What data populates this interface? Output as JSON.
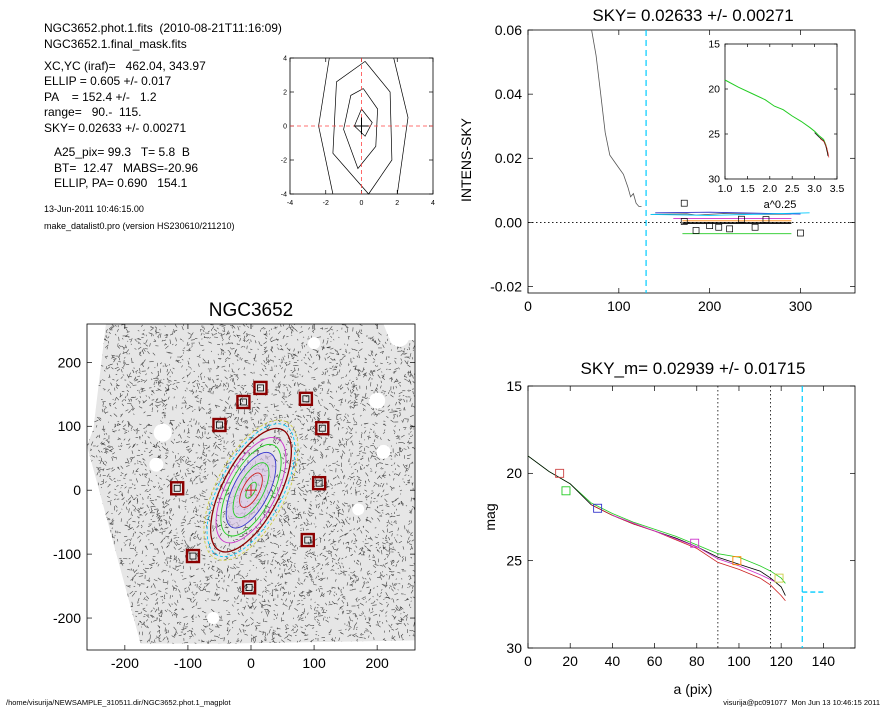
{
  "info": {
    "lines": [
      "NGC3652.phot.1.fits  (2010-08-21T11:16:09)",
      "NGC3652.1.final_mask.fits",
      "XC,YC (iraf)=   462.04, 343.97",
      "ELLIP = 0.605 +/- 0.017",
      "PA    = 152.4 +/-   1.2",
      "range=   90.-  115.",
      "SKY= 0.02633 +/- 0.00271",
      "A25_pix= 99.3   T= 5.8  B",
      "BT=  12.47   MABS=-20.96",
      "ELLIP, PA= 0.690   154.1",
      "13-Jun-2011 10:46:15.00",
      "make_datalist0.pro (version HS230610/211210)"
    ]
  },
  "footer": {
    "left": "/home/visurija/NEWSAMPLE_310511.dir/NGC3652.phot.1_magplot",
    "right": "visurija@pc091077  Mon Jun 13 10:46:15 2011"
  },
  "colors": {
    "sky": "#00ccff",
    "cross": "#ff4444",
    "box": "#8b0000",
    "green": "#22cc22",
    "magenta": "#cc33cc",
    "red": "#cc2222",
    "orange": "#ff8800",
    "blue": "#3333cc"
  },
  "chart_data": [
    {
      "type": "line",
      "name": "contour",
      "xlim": [
        -4,
        4
      ],
      "ylim": [
        -4,
        4
      ],
      "xticks": [
        -4,
        -2,
        0,
        2,
        4
      ],
      "yticks": [
        -4,
        -2,
        0,
        2,
        4
      ],
      "contours": [
        [
          [
            0.0,
            1.0
          ],
          [
            0.6,
            0.2
          ],
          [
            0.2,
            -0.6
          ],
          [
            -0.4,
            0.0
          ],
          [
            0.0,
            1.0
          ]
        ],
        [
          [
            0.1,
            2.2
          ],
          [
            0.9,
            1.0
          ],
          [
            0.8,
            -1.2
          ],
          [
            -0.2,
            -2.5
          ],
          [
            -1.0,
            -0.2
          ],
          [
            -0.6,
            1.8
          ],
          [
            0.1,
            2.2
          ]
        ],
        [
          [
            0.2,
            3.8
          ],
          [
            1.6,
            2.0
          ],
          [
            1.7,
            -2.0
          ],
          [
            0.4,
            -4.0
          ],
          [
            -1.6,
            -1.6
          ],
          [
            -1.4,
            2.6
          ],
          [
            0.2,
            3.8
          ]
        ],
        [
          [
            1.8,
            4.0
          ],
          [
            2.6,
            0.5
          ],
          [
            2.0,
            -4.0
          ]
        ],
        [
          [
            -1.8,
            4.0
          ],
          [
            -2.4,
            0.0
          ],
          [
            -1.6,
            -4.0
          ]
        ]
      ],
      "crosshair": [
        0,
        0
      ]
    },
    {
      "type": "line",
      "title": "SKY= 0.02633 +/- 0.00271",
      "xlabel": "",
      "ylabel": "INTENS-SKY",
      "xlim": [
        0,
        360
      ],
      "ylim": [
        -0.022,
        0.06
      ],
      "xticks": [
        0,
        100,
        200,
        300
      ],
      "yticks": [
        -0.02,
        0.0,
        0.02,
        0.04,
        0.06
      ],
      "ytick_labels": [
        "-0.02",
        "0.00",
        "0.02",
        "0.04",
        "0.06"
      ],
      "zero_line": true,
      "sky_vline": 130,
      "profile": [
        [
          70,
          0.06
        ],
        [
          75,
          0.052
        ],
        [
          80,
          0.04
        ],
        [
          85,
          0.028
        ],
        [
          90,
          0.021
        ],
        [
          95,
          0.019
        ],
        [
          100,
          0.017
        ],
        [
          105,
          0.015
        ],
        [
          110,
          0.011
        ],
        [
          113,
          0.008
        ],
        [
          116,
          0.009
        ],
        [
          119,
          0.006
        ],
        [
          122,
          0.005
        ],
        [
          125,
          0.005
        ]
      ],
      "profile_right": [
        [
          135,
          0.0025
        ],
        [
          175,
          0.0027
        ],
        [
          185,
          0.0023
        ],
        [
          215,
          0.0028
        ],
        [
          260,
          0.0025
        ],
        [
          290,
          0.0026
        ]
      ],
      "sky_lines": [
        {
          "color": "#3333cc",
          "points": [
            [
              140,
              0.003
            ],
            [
              200,
              0.0032
            ],
            [
              300,
              0.0026
            ]
          ]
        },
        {
          "color": "#00ccff",
          "points": [
            [
              135,
              0.0025
            ],
            [
              200,
              0.0022
            ],
            [
              310,
              0.003
            ]
          ]
        },
        {
          "color": "#cc33cc",
          "points": [
            [
              160,
              0.0012
            ],
            [
              290,
              0.0012
            ]
          ]
        },
        {
          "color": "#ff8800",
          "points": [
            [
              170,
              0.0005
            ],
            [
              290,
              0.0005
            ]
          ]
        },
        {
          "color": "#000000",
          "points": [
            [
              170,
              -0.0002
            ],
            [
              290,
              -0.0002
            ]
          ]
        },
        {
          "color": "#22cc22",
          "points": [
            [
              170,
              -0.0035
            ],
            [
              290,
              -0.0035
            ]
          ]
        }
      ],
      "squares": [
        [
          172,
          0.006
        ],
        [
          172,
          0.0003
        ],
        [
          185,
          -0.0025
        ],
        [
          200,
          -0.001
        ],
        [
          210,
          -0.0015
        ],
        [
          222,
          -0.002
        ],
        [
          235,
          0.001
        ],
        [
          250,
          -0.0015
        ],
        [
          262,
          0.0009
        ],
        [
          300,
          -0.0033
        ]
      ],
      "inset": {
        "xlabel": "a^0.25",
        "xlim": [
          1.0,
          3.5
        ],
        "ylim": [
          15,
          30
        ],
        "yreverse": true,
        "xticks": [
          1.0,
          1.5,
          2.0,
          2.5,
          3.0,
          3.5
        ],
        "xtick_labels": [
          "1.0",
          "1.5",
          "2.0",
          "2.5",
          "3.0",
          "3.5"
        ],
        "yticks": [
          15,
          20,
          25,
          30
        ],
        "curve": [
          [
            1.0,
            19.0
          ],
          [
            1.3,
            19.8
          ],
          [
            1.6,
            20.5
          ],
          [
            1.9,
            21.2
          ],
          [
            2.1,
            21.9
          ],
          [
            2.3,
            22.3
          ],
          [
            2.5,
            23.0
          ],
          [
            2.7,
            23.6
          ],
          [
            2.9,
            24.3
          ],
          [
            3.0,
            24.7
          ],
          [
            3.1,
            25.2
          ],
          [
            3.2,
            25.6
          ],
          [
            3.25,
            26.2
          ],
          [
            3.28,
            26.8
          ],
          [
            3.3,
            27.3
          ]
        ]
      }
    },
    {
      "type": "scatter",
      "title": "NGC3652",
      "xlim": [
        -260,
        260
      ],
      "ylim": [
        -250,
        260
      ],
      "xticks": [
        -200,
        -100,
        0,
        100,
        200
      ],
      "yticks": [
        -200,
        -100,
        0,
        100,
        200
      ],
      "center": [
        0,
        0
      ],
      "pa_deg": 152.4,
      "ellipses": [
        {
          "a": 122,
          "b": 55,
          "color": "#cccc44"
        },
        {
          "a": 116,
          "b": 50,
          "color": "#00ccff"
        },
        {
          "a": 108,
          "b": 45,
          "color": "#8b0000"
        },
        {
          "a": 92,
          "b": 40,
          "color": "#cc33cc"
        },
        {
          "a": 80,
          "b": 34,
          "color": "#22cc22"
        },
        {
          "a": 66,
          "b": 28,
          "color": "#3333cc"
        },
        {
          "a": 48,
          "b": 20,
          "color": "#22cc22"
        },
        {
          "a": 30,
          "b": 13,
          "color": "#cc2222"
        },
        {
          "a": 14,
          "b": 6,
          "color": "#22cc22"
        }
      ],
      "boxes": [
        [
          15,
          160
        ],
        [
          -12,
          138
        ],
        [
          -50,
          102
        ],
        [
          -117,
          3
        ],
        [
          -92,
          -103
        ],
        [
          -3,
          -152
        ],
        [
          90,
          -78
        ],
        [
          108,
          11
        ],
        [
          113,
          97
        ],
        [
          87,
          143
        ]
      ]
    },
    {
      "type": "line",
      "title": "SKY_m=  0.02939 +/- 0.01715",
      "xlabel": "a (pix)",
      "ylabel": "mag",
      "xlim": [
        0,
        155
      ],
      "ylim": [
        15,
        30
      ],
      "yreverse": true,
      "xticks": [
        0,
        20,
        40,
        60,
        80,
        100,
        120,
        140
      ],
      "yticks": [
        15,
        20,
        25,
        30
      ],
      "vlines": [
        90,
        115
      ],
      "sky_vline": 130,
      "sky_mag": [
        [
          130,
          26.8
        ],
        [
          140,
          26.8
        ]
      ],
      "series": [
        {
          "color": "#22cc22",
          "points": [
            [
              0,
              19.0
            ],
            [
              10,
              19.9
            ],
            [
              20,
              20.6
            ],
            [
              30,
              21.7
            ],
            [
              40,
              22.3
            ],
            [
              50,
              22.8
            ],
            [
              60,
              23.2
            ],
            [
              70,
              23.6
            ],
            [
              80,
              24.1
            ],
            [
              90,
              24.6
            ],
            [
              100,
              24.8
            ],
            [
              110,
              25.3
            ],
            [
              115,
              25.6
            ],
            [
              120,
              26.0
            ],
            [
              122,
              26.3
            ]
          ]
        },
        {
          "color": "#000000",
          "points": [
            [
              0,
              19.0
            ],
            [
              10,
              19.9
            ],
            [
              20,
              20.6
            ],
            [
              30,
              21.8
            ],
            [
              40,
              22.4
            ],
            [
              50,
              22.9
            ],
            [
              60,
              23.3
            ],
            [
              70,
              23.7
            ],
            [
              80,
              24.2
            ],
            [
              90,
              24.8
            ],
            [
              100,
              25.2
            ],
            [
              110,
              25.6
            ],
            [
              115,
              26.0
            ],
            [
              120,
              26.5
            ],
            [
              122,
              27.0
            ]
          ]
        },
        {
          "color": "#cc2222",
          "points": [
            [
              30,
              21.8
            ],
            [
              40,
              22.4
            ],
            [
              50,
              22.9
            ],
            [
              60,
              23.3
            ],
            [
              70,
              23.8
            ],
            [
              80,
              24.3
            ],
            [
              90,
              25.1
            ],
            [
              100,
              25.5
            ],
            [
              110,
              26.0
            ],
            [
              115,
              26.4
            ],
            [
              120,
              27.0
            ],
            [
              122,
              27.3
            ]
          ]
        },
        {
          "color": "#cc33cc",
          "points": [
            [
              40,
              22.4
            ],
            [
              60,
              23.3
            ],
            [
              80,
              24.2
            ],
            [
              90,
              24.9
            ],
            [
              100,
              25.3
            ],
            [
              110,
              25.8
            ],
            [
              117,
              26.2
            ]
          ]
        }
      ],
      "squares": [
        {
          "x": 15,
          "y": 20.0,
          "color": "#cc4444"
        },
        {
          "x": 18,
          "y": 21.0,
          "color": "#22cc22"
        },
        {
          "x": 33,
          "y": 22.0,
          "color": "#3333cc"
        },
        {
          "x": 79,
          "y": 24.0,
          "color": "#cc33cc"
        },
        {
          "x": 99,
          "y": 25.0,
          "color": "#ff8800"
        },
        {
          "x": 119,
          "y": 26.0,
          "color": "#cccc44"
        }
      ]
    }
  ]
}
